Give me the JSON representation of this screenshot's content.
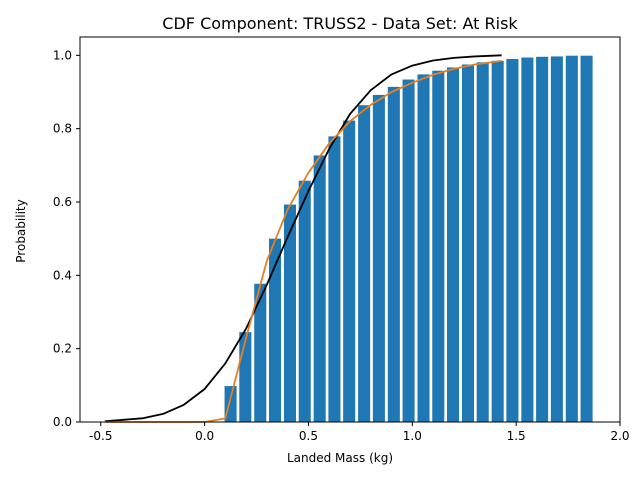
{
  "chart_data": {
    "type": "bar",
    "title": "CDF Component: TRUSS2 - Data Set: At Risk",
    "xlabel": "Landed Mass (kg)",
    "ylabel": "Probability",
    "xlim": [
      -0.6,
      2.0
    ],
    "ylim": [
      0.0,
      1.05
    ],
    "xticks": [
      "-0.5",
      "0.0",
      "0.5",
      "1.0",
      "1.5",
      "2.0"
    ],
    "yticks": [
      "0.0",
      "0.2",
      "0.4",
      "0.6",
      "0.8",
      "1.0"
    ],
    "grid": false,
    "bar_width": 0.058,
    "x": [
      0.125,
      0.196,
      0.268,
      0.339,
      0.411,
      0.482,
      0.554,
      0.625,
      0.696,
      0.768,
      0.839,
      0.911,
      0.982,
      1.054,
      1.125,
      1.196,
      1.268,
      1.339,
      1.411,
      1.482,
      1.554,
      1.625,
      1.696,
      1.768,
      1.839
    ],
    "values": [
      0.098,
      0.245,
      0.377,
      0.5,
      0.593,
      0.658,
      0.727,
      0.779,
      0.822,
      0.864,
      0.892,
      0.914,
      0.934,
      0.948,
      0.958,
      0.967,
      0.975,
      0.981,
      0.985,
      0.99,
      0.994,
      0.996,
      0.997,
      0.999,
      0.999
    ],
    "series": [
      {
        "type": "line",
        "color": "#000000",
        "x": [
          -0.48,
          -0.3,
          -0.2,
          -0.1,
          0.0,
          0.1,
          0.2,
          0.3,
          0.4,
          0.5,
          0.6,
          0.7,
          0.8,
          0.9,
          1.0,
          1.1,
          1.2,
          1.3,
          1.43
        ],
        "y": [
          0.002,
          0.01,
          0.022,
          0.047,
          0.09,
          0.16,
          0.255,
          0.375,
          0.505,
          0.63,
          0.745,
          0.84,
          0.905,
          0.948,
          0.972,
          0.986,
          0.993,
          0.997,
          1.0
        ]
      },
      {
        "type": "line",
        "color": "#e67e22",
        "x": [
          -0.48,
          -0.3,
          -0.1,
          0.0,
          0.1,
          0.2,
          0.3,
          0.4,
          0.5,
          0.6,
          0.7,
          0.8,
          0.9,
          1.0,
          1.1,
          1.2,
          1.3,
          1.43
        ],
        "y": [
          0.0,
          0.0,
          0.0,
          0.0,
          0.01,
          0.23,
          0.44,
          0.58,
          0.68,
          0.76,
          0.82,
          0.865,
          0.9,
          0.925,
          0.947,
          0.963,
          0.975,
          0.985
        ]
      }
    ],
    "colors": {
      "bars": "#1f77b4"
    }
  }
}
